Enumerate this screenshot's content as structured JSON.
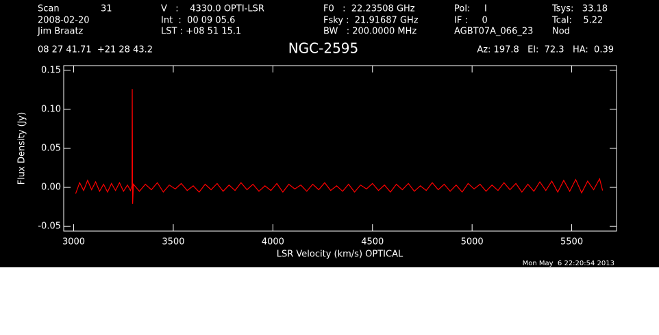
{
  "chart_data": {
    "type": "line",
    "title": "NGC-2595",
    "header": [
      "Scan",
      "31",
      "V   :    4330.0 OPTI-LSR",
      "F0   :  22.23508 GHz",
      "Pol:     I",
      "Tsys:   33.18",
      "2008-02-20",
      "Int  :  00 09 05.6",
      "Fsky :  21.91687 GHz",
      "IF :     0",
      "Tcal:    5.22",
      "Jim Braatz",
      "LST : +08 51 15.1",
      "BW   : 200.0000 MHz",
      "AGBT07A_066_23",
      "Nod",
      "08 27 41.71  +21 28 43.2",
      "Az: 197.8   El:  72.3   HA:  0.39"
    ],
    "timestamp": "Mon May  6 22:20:54 2013",
    "xlabel": "LSR Velocity (km/s) OPTICAL",
    "ylabel": "Flux Density (Jy)",
    "color": "#ff0000",
    "x": [
      3010,
      3030,
      3050,
      3070,
      3090,
      3110,
      3130,
      3150,
      3170,
      3190,
      3210,
      3230,
      3250,
      3270,
      3285,
      3293,
      3294,
      3296,
      3300,
      3330,
      3360,
      3390,
      3420,
      3450,
      3480,
      3510,
      3540,
      3570,
      3600,
      3630,
      3660,
      3690,
      3720,
      3750,
      3780,
      3810,
      3840,
      3870,
      3900,
      3930,
      3960,
      3990,
      4020,
      4050,
      4080,
      4110,
      4140,
      4170,
      4200,
      4230,
      4260,
      4290,
      4320,
      4350,
      4380,
      4410,
      4440,
      4470,
      4500,
      4530,
      4560,
      4590,
      4620,
      4650,
      4680,
      4710,
      4740,
      4770,
      4800,
      4830,
      4860,
      4890,
      4920,
      4950,
      4980,
      5010,
      5040,
      5070,
      5100,
      5130,
      5160,
      5190,
      5220,
      5250,
      5280,
      5310,
      5340,
      5370,
      5400,
      5430,
      5460,
      5490,
      5520,
      5550,
      5580,
      5610,
      5640,
      5655
    ],
    "values": [
      -0.008,
      0.006,
      -0.004,
      0.009,
      -0.003,
      0.007,
      -0.005,
      0.004,
      -0.006,
      0.005,
      -0.004,
      0.006,
      -0.005,
      0.003,
      -0.004,
      0.002,
      0.126,
      -0.021,
      0.004,
      -0.005,
      0.004,
      -0.003,
      0.006,
      -0.006,
      0.003,
      -0.002,
      0.005,
      -0.004,
      0.002,
      -0.006,
      0.004,
      -0.003,
      0.005,
      -0.005,
      0.003,
      -0.004,
      0.006,
      -0.003,
      0.004,
      -0.005,
      0.002,
      -0.004,
      0.005,
      -0.006,
      0.004,
      -0.002,
      0.003,
      -0.005,
      0.004,
      -0.003,
      0.006,
      -0.004,
      0.002,
      -0.005,
      0.004,
      -0.006,
      0.003,
      -0.002,
      0.005,
      -0.004,
      0.003,
      -0.006,
      0.004,
      -0.003,
      0.005,
      -0.005,
      0.002,
      -0.004,
      0.006,
      -0.003,
      0.004,
      -0.005,
      0.003,
      -0.006,
      0.005,
      -0.002,
      0.004,
      -0.005,
      0.003,
      -0.004,
      0.006,
      -0.003,
      0.005,
      -0.006,
      0.004,
      -0.005,
      0.007,
      -0.004,
      0.008,
      -0.006,
      0.009,
      -0.005,
      0.01,
      -0.007,
      0.008,
      -0.003,
      0.011,
      -0.004
    ],
    "xlim": [
      2950,
      5725
    ],
    "ylim": [
      -0.056,
      0.156
    ],
    "xticks": [
      3000,
      3500,
      4000,
      4500,
      5000,
      5500
    ],
    "yticks": [
      {
        "value": -0.05,
        "label": "-0.05"
      },
      {
        "value": 0,
        "label": "0.00"
      },
      0.05,
      {
        "value": 0.1,
        "label": "0.10"
      },
      0.15
    ]
  }
}
